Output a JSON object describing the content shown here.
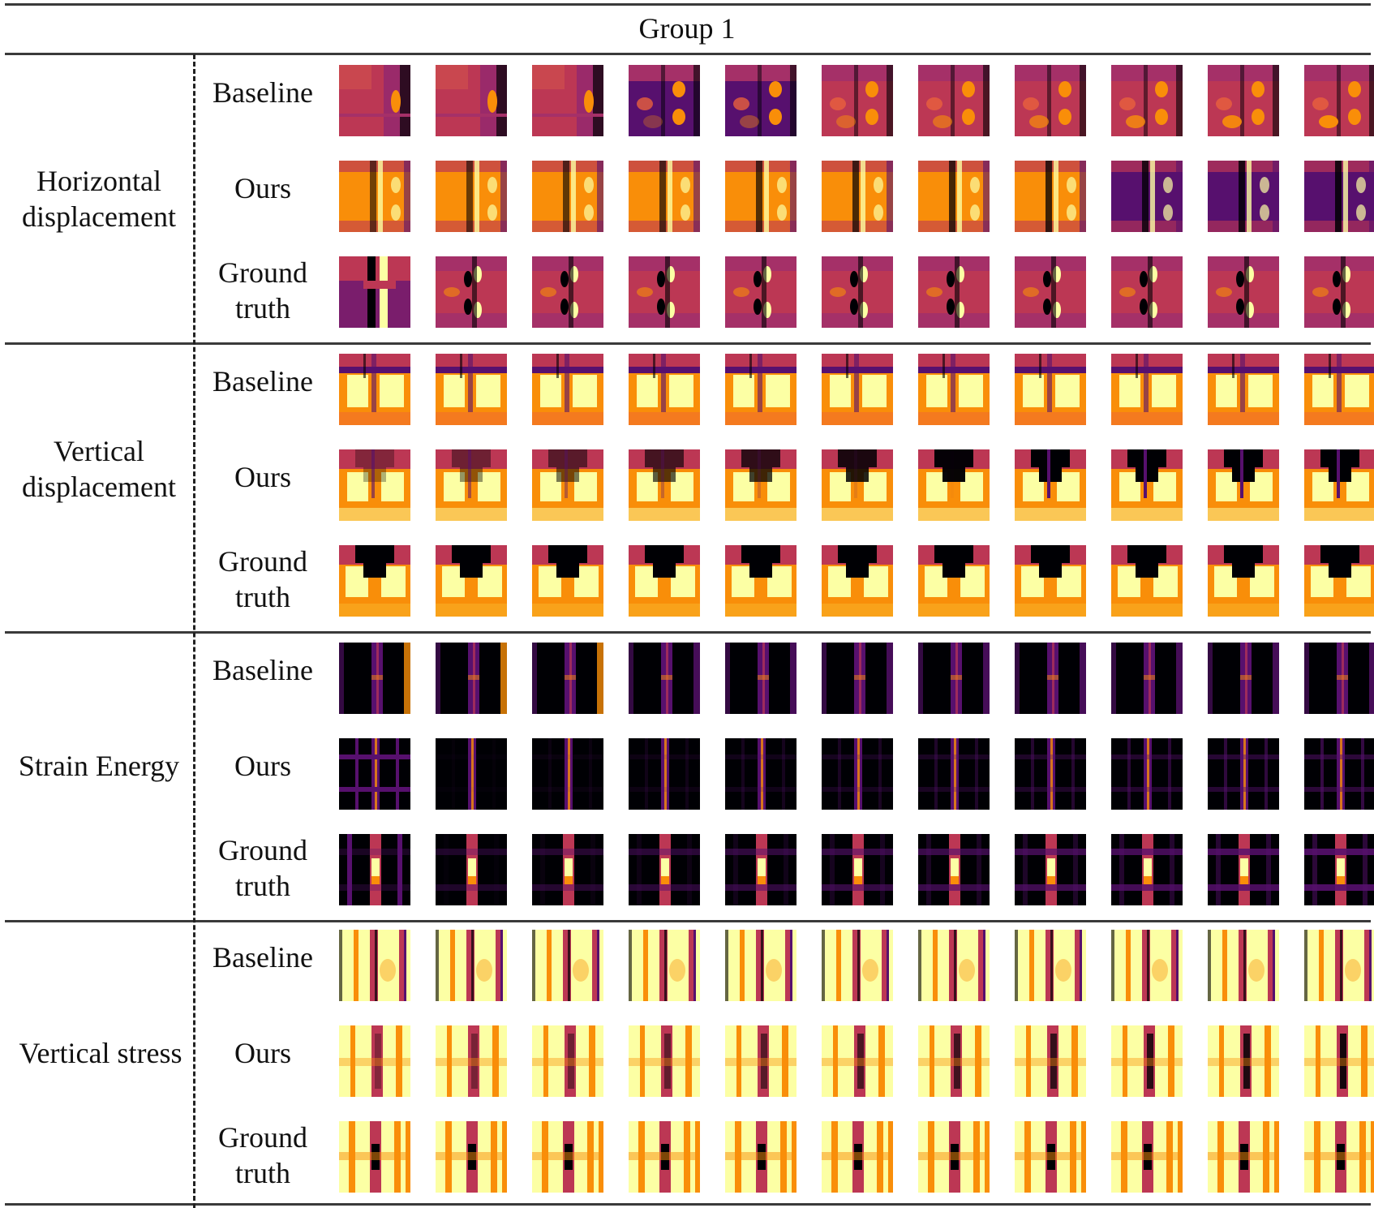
{
  "title": "Group 1",
  "row_labels": {
    "baseline": "Baseline",
    "ours": "Ours",
    "ground_truth": "Ground truth"
  },
  "colormap": {
    "black": "#000004",
    "purple": "#57106e",
    "magenta": "#bc3754",
    "orange": "#f98e09",
    "yellow": "#fcffa4"
  },
  "sections": [
    {
      "id": "horizontal-displacement",
      "label": "Horizontal displacement",
      "thumbnails_per_row": 11
    },
    {
      "id": "vertical-displacement",
      "label": "Vertical displacement",
      "thumbnails_per_row": 11
    },
    {
      "id": "strain-energy",
      "label": "Strain Energy",
      "thumbnails_per_row": 11
    },
    {
      "id": "vertical-stress",
      "label": "Vertical stress",
      "thumbnails_per_row": 11
    }
  ]
}
